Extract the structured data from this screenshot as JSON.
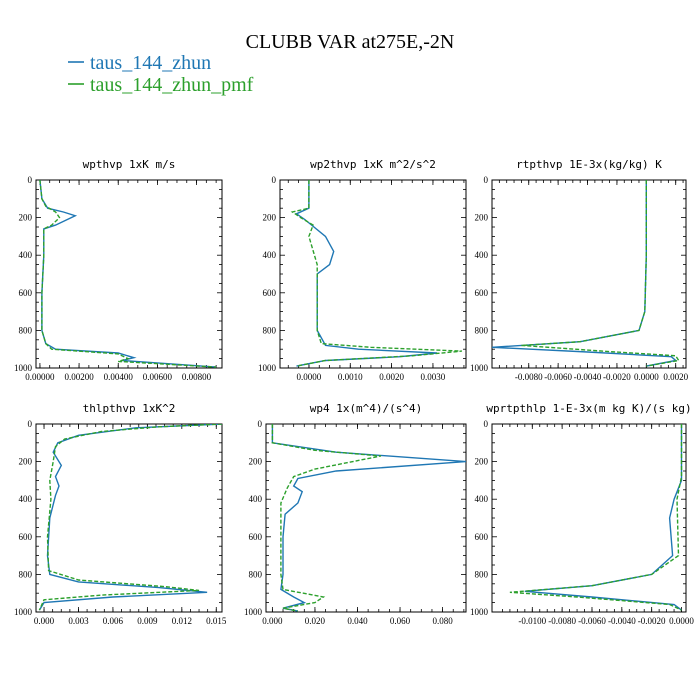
{
  "figure": {
    "title": "CLUBB VAR at275E,-2N",
    "legend": [
      {
        "label": "taus_144_zhun",
        "color": "#1f77b4"
      },
      {
        "label": "taus_144_zhun_pmf",
        "color": "#2ca02c"
      }
    ]
  },
  "chart_data": [
    {
      "type": "line",
      "title": "wpthvp   1xK m/s",
      "xlim": [
        -0.0002,
        0.0093
      ],
      "ylim": [
        1000,
        0
      ],
      "xticks": [
        0.0,
        0.002,
        0.004,
        0.006,
        0.008
      ],
      "xtick_labels": [
        "0.00000",
        "0.00200",
        "0.00400",
        "0.00600",
        "0.00800"
      ],
      "yticks": [
        0,
        200,
        400,
        600,
        800,
        1000
      ],
      "ytick_labels": [
        "0",
        "200",
        "400",
        "600",
        "800",
        "1000"
      ],
      "series": [
        {
          "name": "taus_144_zhun",
          "color": "#1f77b4",
          "dashed": false,
          "points": [
            [
              0.0,
              0
            ],
            [
              0.0001,
              100
            ],
            [
              0.0004,
              150
            ],
            [
              0.0012,
              170
            ],
            [
              0.0018,
              190
            ],
            [
              0.0008,
              240
            ],
            [
              0.0002,
              260
            ],
            [
              0.0002,
              400
            ],
            [
              0.0001,
              600
            ],
            [
              0.0001,
              800
            ],
            [
              0.0003,
              870
            ],
            [
              0.0008,
              900
            ],
            [
              0.004,
              920
            ],
            [
              0.0048,
              945
            ],
            [
              0.0042,
              960
            ],
            [
              0.009,
              995
            ]
          ]
        },
        {
          "name": "taus_144_zhun_pmf",
          "color": "#2ca02c",
          "dashed": true,
          "points": [
            [
              0.0,
              0
            ],
            [
              0.0001,
              100
            ],
            [
              0.0003,
              140
            ],
            [
              0.0008,
              170
            ],
            [
              0.001,
              200
            ],
            [
              0.0006,
              240
            ],
            [
              0.0002,
              260
            ],
            [
              0.0002,
              400
            ],
            [
              0.0001,
              600
            ],
            [
              0.0001,
              800
            ],
            [
              0.0003,
              870
            ],
            [
              0.0006,
              900
            ],
            [
              0.004,
              925
            ],
            [
              0.0045,
              950
            ],
            [
              0.004,
              965
            ],
            [
              0.009,
              995
            ]
          ]
        }
      ]
    },
    {
      "type": "line",
      "title": "wp2thvp   1xK m^2/s^2",
      "xlim": [
        -0.0007,
        0.0038
      ],
      "ylim": [
        1000,
        0
      ],
      "xticks": [
        0.0,
        0.001,
        0.002,
        0.003
      ],
      "xtick_labels": [
        "0.0000",
        "0.0010",
        "0.0020",
        "0.0030"
      ],
      "yticks": [
        0,
        200,
        400,
        600,
        800,
        1000
      ],
      "ytick_labels": [
        "0",
        "200",
        "400",
        "600",
        "800",
        "1000"
      ],
      "series": [
        {
          "name": "taus_144_zhun",
          "color": "#1f77b4",
          "dashed": false,
          "points": [
            [
              0.0,
              0
            ],
            [
              0.0,
              150
            ],
            [
              -0.0003,
              180
            ],
            [
              -0.0001,
              210
            ],
            [
              0.0004,
              300
            ],
            [
              0.0006,
              380
            ],
            [
              0.0005,
              450
            ],
            [
              0.0002,
              500
            ],
            [
              0.0002,
              700
            ],
            [
              0.0002,
              800
            ],
            [
              0.0004,
              880
            ],
            [
              0.0012,
              900
            ],
            [
              0.0031,
              920
            ],
            [
              0.0022,
              940
            ],
            [
              0.0004,
              960
            ],
            [
              -0.0003,
              990
            ]
          ]
        },
        {
          "name": "taus_144_zhun_pmf",
          "color": "#2ca02c",
          "dashed": true,
          "points": [
            [
              0.0,
              0
            ],
            [
              0.0,
              150
            ],
            [
              -0.0004,
              170
            ],
            [
              -0.0002,
              200
            ],
            [
              0.0001,
              240
            ],
            [
              0.0,
              300
            ],
            [
              0.0002,
              450
            ],
            [
              0.0002,
              700
            ],
            [
              0.0002,
              800
            ],
            [
              0.0003,
              870
            ],
            [
              0.0015,
              890
            ],
            [
              0.0037,
              910
            ],
            [
              0.0025,
              935
            ],
            [
              0.0004,
              960
            ],
            [
              -0.0003,
              990
            ]
          ]
        }
      ]
    },
    {
      "type": "line",
      "title": "rtpthvp   1E-3x(kg/kg) K",
      "xlim": [
        -0.0105,
        0.0027
      ],
      "ylim": [
        1000,
        0
      ],
      "xticks": [
        -0.008,
        -0.006,
        -0.004,
        -0.002,
        0.0,
        0.002
      ],
      "xtick_labels": [
        "-0.0080",
        "-0.0060",
        "-0.0040",
        "-0.0020",
        "0.0000",
        "0.0020"
      ],
      "yticks": [
        0,
        200,
        400,
        600,
        800,
        1000
      ],
      "ytick_labels": [
        "0",
        "200",
        "400",
        "600",
        "800",
        "1000"
      ],
      "series": [
        {
          "name": "taus_144_zhun",
          "color": "#1f77b4",
          "dashed": false,
          "points": [
            [
              0.0,
              0
            ],
            [
              0.0,
              400
            ],
            [
              -0.0001,
              700
            ],
            [
              -0.0005,
              800
            ],
            [
              -0.0045,
              860
            ],
            [
              -0.0105,
              890
            ],
            [
              -0.004,
              915
            ],
            [
              0.0017,
              940
            ],
            [
              0.002,
              960
            ],
            [
              0.0,
              990
            ]
          ]
        },
        {
          "name": "taus_144_zhun_pmf",
          "color": "#2ca02c",
          "dashed": true,
          "points": [
            [
              0.0,
              0
            ],
            [
              0.0,
              400
            ],
            [
              -0.0001,
              700
            ],
            [
              -0.0005,
              800
            ],
            [
              -0.0045,
              860
            ],
            [
              -0.0085,
              880
            ],
            [
              -0.003,
              910
            ],
            [
              0.002,
              935
            ],
            [
              0.0022,
              960
            ],
            [
              0.0,
              990
            ]
          ]
        }
      ]
    },
    {
      "type": "line",
      "title": "thlpthvp   1xK^2",
      "xlim": [
        -0.0007,
        0.0155
      ],
      "ylim": [
        1000,
        0
      ],
      "xticks": [
        0.0,
        0.003,
        0.006,
        0.009,
        0.012,
        0.015
      ],
      "xtick_labels": [
        "0.000",
        "0.003",
        "0.006",
        "0.009",
        "0.012",
        "0.015"
      ],
      "yticks": [
        0,
        200,
        400,
        600,
        800,
        1000
      ],
      "ytick_labels": [
        "0",
        "200",
        "400",
        "600",
        "800",
        "1000"
      ],
      "series": [
        {
          "name": "taus_144_zhun",
          "color": "#1f77b4",
          "dashed": false,
          "points": [
            [
              0.0155,
              0
            ],
            [
              0.008,
              20
            ],
            [
              0.003,
              60
            ],
            [
              0.0012,
              100
            ],
            [
              0.0008,
              150
            ],
            [
              0.0015,
              220
            ],
            [
              0.001,
              280
            ],
            [
              0.0013,
              330
            ],
            [
              0.001,
              380
            ],
            [
              0.0005,
              500
            ],
            [
              0.0003,
              700
            ],
            [
              0.0005,
              800
            ],
            [
              0.003,
              840
            ],
            [
              0.01,
              870
            ],
            [
              0.0142,
              895
            ],
            [
              0.006,
              920
            ],
            [
              0.0,
              950
            ],
            [
              -0.0004,
              990
            ]
          ]
        },
        {
          "name": "taus_144_zhun_pmf",
          "color": "#2ca02c",
          "dashed": true,
          "points": [
            [
              0.0155,
              0
            ],
            [
              0.01,
              15
            ],
            [
              0.005,
              40
            ],
            [
              0.0018,
              80
            ],
            [
              0.001,
              120
            ],
            [
              0.0008,
              200
            ],
            [
              0.0005,
              300
            ],
            [
              0.0006,
              400
            ],
            [
              0.0003,
              600
            ],
            [
              0.0004,
              780
            ],
            [
              0.003,
              830
            ],
            [
              0.0105,
              865
            ],
            [
              0.0135,
              885
            ],
            [
              0.005,
              910
            ],
            [
              0.0,
              935
            ],
            [
              -0.0004,
              990
            ]
          ]
        }
      ]
    },
    {
      "type": "line",
      "title": "wp4   1x(m^4)/(s^4)",
      "xlim": [
        -0.003,
        0.091
      ],
      "ylim": [
        1000,
        0
      ],
      "xticks": [
        0.0,
        0.02,
        0.04,
        0.06,
        0.08
      ],
      "xtick_labels": [
        "0.000",
        "0.020",
        "0.040",
        "0.060",
        "0.080"
      ],
      "yticks": [
        0,
        200,
        400,
        600,
        800,
        1000
      ],
      "ytick_labels": [
        "0",
        "200",
        "400",
        "600",
        "800",
        "1000"
      ],
      "series": [
        {
          "name": "taus_144_zhun",
          "color": "#1f77b4",
          "dashed": false,
          "points": [
            [
              0.0,
              0
            ],
            [
              0.0,
              100
            ],
            [
              0.03,
              150
            ],
            [
              0.091,
              200
            ],
            [
              0.03,
              250
            ],
            [
              0.012,
              290
            ],
            [
              0.01,
              330
            ],
            [
              0.014,
              360
            ],
            [
              0.012,
              420
            ],
            [
              0.006,
              480
            ],
            [
              0.005,
              600
            ],
            [
              0.005,
              800
            ],
            [
              0.004,
              880
            ],
            [
              0.01,
              920
            ],
            [
              0.015,
              950
            ],
            [
              0.005,
              980
            ],
            [
              0.012,
              995
            ]
          ]
        },
        {
          "name": "taus_144_zhun_pmf",
          "color": "#2ca02c",
          "dashed": true,
          "points": [
            [
              0.0,
              0
            ],
            [
              0.0,
              100
            ],
            [
              0.02,
              140
            ],
            [
              0.051,
              170
            ],
            [
              0.02,
              240
            ],
            [
              0.01,
              280
            ],
            [
              0.007,
              340
            ],
            [
              0.004,
              420
            ],
            [
              0.004,
              600
            ],
            [
              0.004,
              800
            ],
            [
              0.005,
              880
            ],
            [
              0.024,
              920
            ],
            [
              0.02,
              950
            ],
            [
              0.005,
              980
            ],
            [
              0.012,
              995
            ]
          ]
        }
      ]
    },
    {
      "type": "line",
      "title": "wprtpthlp   1-E-3x(m kg K)/(s kg)",
      "xlim": [
        -0.0127,
        0.0003
      ],
      "ylim": [
        1000,
        0
      ],
      "xticks": [
        -0.01,
        -0.008,
        -0.006,
        -0.004,
        -0.002,
        0.0
      ],
      "xtick_labels": [
        "-0.0100",
        "-0.0080",
        "-0.0060",
        "-0.0040",
        "-0.0020",
        "0.0000"
      ],
      "yticks": [
        0,
        200,
        400,
        600,
        800,
        1000
      ],
      "ytick_labels": [
        "0",
        "200",
        "400",
        "600",
        "800",
        "1000"
      ],
      "series": [
        {
          "name": "taus_144_zhun",
          "color": "#1f77b4",
          "dashed": false,
          "points": [
            [
              0.0,
              0
            ],
            [
              0.0,
              300
            ],
            [
              -0.0005,
              400
            ],
            [
              -0.0008,
              500
            ],
            [
              -0.0006,
              700
            ],
            [
              -0.002,
              800
            ],
            [
              -0.006,
              860
            ],
            [
              -0.0105,
              890
            ],
            [
              -0.006,
              920
            ],
            [
              -0.0005,
              960
            ],
            [
              0.0,
              990
            ]
          ]
        },
        {
          "name": "taus_144_zhun_pmf",
          "color": "#2ca02c",
          "dashed": true,
          "points": [
            [
              0.0,
              0
            ],
            [
              0.0,
              280
            ],
            [
              -0.0003,
              400
            ],
            [
              -0.0002,
              700
            ],
            [
              -0.002,
              800
            ],
            [
              -0.006,
              860
            ],
            [
              -0.0115,
              895
            ],
            [
              -0.007,
              920
            ],
            [
              -0.0008,
              960
            ],
            [
              0.0,
              990
            ]
          ]
        }
      ]
    }
  ]
}
